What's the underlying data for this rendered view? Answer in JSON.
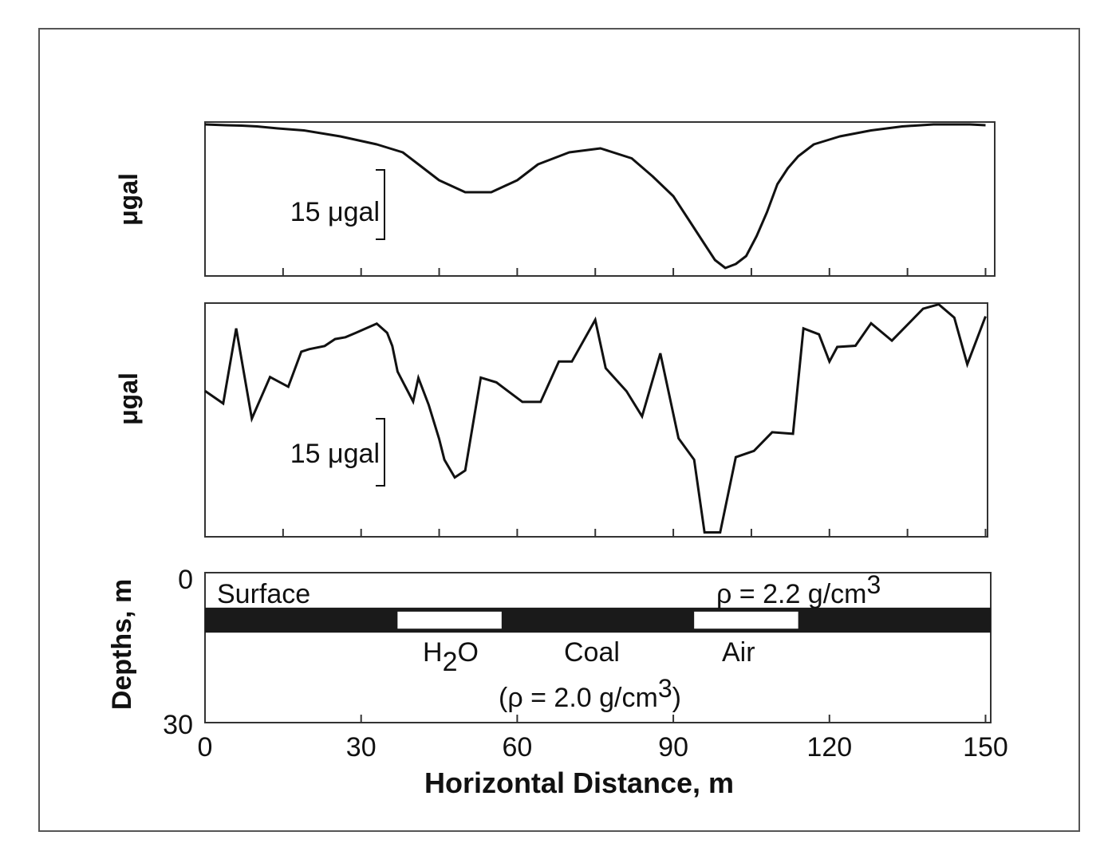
{
  "chart_data": [
    {
      "type": "line",
      "panel": "top",
      "ylabel": "μgal",
      "scale_bar_label": "15 μgal",
      "scale_bar_value": 15,
      "x": [
        0,
        4,
        7,
        10,
        14,
        19,
        26,
        33,
        38,
        41,
        45,
        50,
        55,
        60,
        64,
        70,
        76,
        82,
        86,
        90,
        93,
        96,
        98,
        100,
        102,
        104,
        106,
        108,
        110,
        112,
        114,
        117,
        122,
        128,
        134,
        140,
        144,
        147,
        150
      ],
      "values": [
        0,
        -0.2,
        -0.3,
        -0.5,
        -1,
        -1.5,
        -3,
        -5,
        -7,
        -10,
        -14,
        -17,
        -17,
        -14,
        -10,
        -7,
        -6,
        -8.5,
        -13,
        -18,
        -24,
        -30,
        -34,
        -36,
        -35,
        -33,
        -28,
        -22,
        -15,
        -11,
        -8,
        -5,
        -3,
        -1.5,
        -0.5,
        0,
        0,
        0,
        -0.2
      ],
      "xlim": [
        0,
        151
      ],
      "ylim": [
        -38,
        0.6
      ]
    },
    {
      "type": "line",
      "panel": "middle",
      "ylabel": "μgal",
      "scale_bar_label": "15 μgal",
      "scale_bar_value": 15,
      "x": [
        0,
        3.5,
        6,
        9,
        12.5,
        16,
        18.5,
        20,
        23,
        25,
        27,
        29,
        33,
        35,
        36,
        37,
        40,
        41,
        43,
        45,
        46,
        48,
        50,
        53,
        56,
        61,
        64.5,
        68,
        70.5,
        75,
        77,
        81,
        84,
        87.5,
        91,
        94,
        96,
        99,
        102,
        105.5,
        109,
        113,
        115,
        118,
        120,
        121.5,
        125,
        128,
        132,
        138,
        141,
        144,
        146.5,
        150
      ],
      "values": [
        -19.8,
        -23.8,
        0,
        -28.6,
        -15.4,
        -18.5,
        -7.4,
        -6.6,
        -5.6,
        -3.4,
        -2.8,
        -1.4,
        1.5,
        -1.4,
        -5.6,
        -13.7,
        -23.2,
        -15.7,
        -24.3,
        -35,
        -41.6,
        -47.2,
        -45,
        -15.6,
        -17.1,
        -23.3,
        -23.3,
        -10.5,
        -10.5,
        2.7,
        -12.6,
        -19.9,
        -27.9,
        -7.9,
        -34.8,
        -41.6,
        -64.6,
        -64.6,
        -40.8,
        -38.8,
        -32.9,
        -33.4,
        0,
        -1.9,
        -10.5,
        -5.9,
        -5.5,
        1.6,
        -3.9,
        6.2,
        7.6,
        3.4,
        -11.4,
        3.8
      ],
      "xlim": [
        0,
        151
      ],
      "ylim": [
        -66,
        8
      ]
    },
    {
      "type": "cross-section",
      "panel": "bottom",
      "ylabel": "Depths, m",
      "xlabel": "Horizontal Distance, m",
      "ylim": [
        30,
        0
      ],
      "xlim": [
        0,
        151
      ],
      "y_ticks": [
        "0",
        "30"
      ],
      "x_ticks": [
        "0",
        "30",
        "60",
        "90",
        "120",
        "150"
      ],
      "x_tick_values": [
        0,
        30,
        60,
        90,
        120,
        150
      ],
      "coal_seam": {
        "top_depth": 7,
        "bottom_depth": 12
      },
      "voids": [
        {
          "x_start": 37,
          "x_end": 57,
          "label": "H",
          "label_sub": "2",
          "label_tail": "O"
        },
        {
          "x_start": 94,
          "x_end": 114,
          "label": "Air"
        }
      ],
      "labels": {
        "surface": "Surface",
        "rho_top": "ρ = 2.2 g/cm",
        "rho_top_exp": "3",
        "coal": "Coal",
        "rho_coal_open": "(ρ = 2.0 g/cm",
        "rho_coal_exp": "3",
        "rho_coal_close": ")"
      }
    }
  ],
  "colors": {
    "line": "#111111",
    "frame": "#555555",
    "seam": "#1a1a1a"
  }
}
